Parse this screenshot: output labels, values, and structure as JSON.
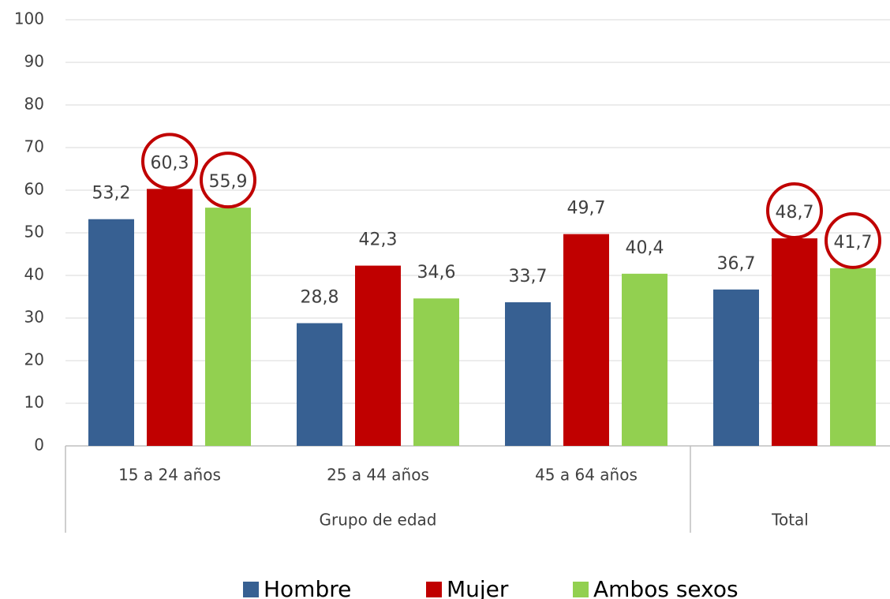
{
  "chart_data": {
    "type": "bar",
    "categories": [
      "15 a 24 años",
      "25 a 44 años",
      "45 a 64 años",
      null
    ],
    "category_groups": [
      {
        "label": "Grupo de edad",
        "span": 3
      },
      {
        "label": "Total",
        "span": 1
      }
    ],
    "series": [
      {
        "name": "Hombre",
        "color": "#376092",
        "values": [
          53.2,
          28.8,
          33.7,
          36.7
        ],
        "value_labels": [
          "53,2",
          "28,8",
          "33,7",
          "36,7"
        ]
      },
      {
        "name": "Mujer",
        "color": "#c00000",
        "values": [
          60.3,
          42.3,
          49.7,
          48.7
        ],
        "value_labels": [
          "60,3",
          "42,3",
          "49,7",
          "48,7"
        ]
      },
      {
        "name": "Ambos sexos",
        "color": "#92d050",
        "values": [
          55.9,
          34.6,
          40.4,
          41.7
        ],
        "value_labels": [
          "55,9",
          "34,6",
          "40,4",
          "41,7"
        ]
      }
    ],
    "highlighted": [
      [
        1,
        0
      ],
      [
        2,
        0
      ],
      [
        1,
        3
      ],
      [
        2,
        3
      ]
    ],
    "highlight_color": "#c00000",
    "ylim": [
      0,
      100
    ],
    "yticks": [
      0,
      10,
      20,
      30,
      40,
      50,
      60,
      70,
      80,
      90,
      100
    ],
    "grid": true,
    "legend": "bottom"
  }
}
